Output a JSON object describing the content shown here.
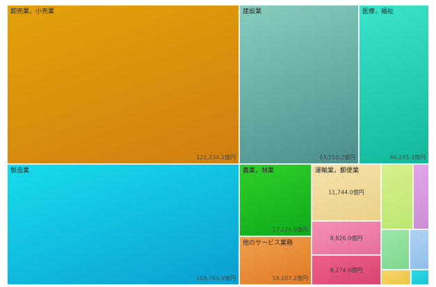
{
  "chart_data": {
    "type": "treemap",
    "unit": "億円",
    "items": [
      {
        "name": "卸売業，小売業",
        "value": "121,234.1億円",
        "colors": [
          "#e2a10a",
          "#cf7f10"
        ],
        "labelPos": "corner"
      },
      {
        "name": "建設業",
        "value": "63,510.2億円",
        "colors": [
          "#86cdbf",
          "#4c8e8a"
        ],
        "labelPos": "corner"
      },
      {
        "name": "医療，福祉",
        "value": "46,245.3億円",
        "colors": [
          "#3be3c9",
          "#13b79a"
        ],
        "labelPos": "corner"
      },
      {
        "name": "製造業",
        "value": "109,760.9億円",
        "colors": [
          "#16dcec",
          "#0b9fd0"
        ],
        "labelPos": "corner"
      },
      {
        "name": "農業，林業",
        "value": "17,224.6億円",
        "colors": [
          "#2fcf28",
          "#0faa1d"
        ],
        "labelPos": "corner"
      },
      {
        "name": "他のサービス業務",
        "value": "14,207.2億円",
        "colors": [
          "#f0a04b",
          "#e07925"
        ],
        "labelPos": "corner"
      },
      {
        "name": "運輸業，郵便業",
        "value": "11,744.0億円",
        "colors": [
          "#f5e2ab",
          "#ecd089"
        ],
        "labelPos": "mid"
      },
      {
        "name": "",
        "value": "8,826.0億円",
        "colors": [
          "#f58fb6",
          "#e66e9a"
        ],
        "labelPos": "mid"
      },
      {
        "name": "",
        "value": "8,274.6億円",
        "colors": [
          "#ee5f88",
          "#d94570"
        ],
        "labelPos": "mid"
      },
      {
        "name": "",
        "value": "",
        "colors": [
          "#d4f08b",
          "#bde672"
        ]
      },
      {
        "name": "",
        "value": "",
        "colors": [
          "#e3a5ea",
          "#c98fd4"
        ]
      },
      {
        "name": "",
        "value": "",
        "colors": [
          "#9ce6a7",
          "#7fd88f"
        ]
      },
      {
        "name": "",
        "value": "",
        "colors": [
          "#aed2f2",
          "#8fbfe9"
        ]
      },
      {
        "name": "",
        "value": "",
        "colors": [
          "#f6d66a",
          "#edc547"
        ]
      },
      {
        "name": "",
        "value": "",
        "colors": [
          "#2cd9e6",
          "#19c5d7"
        ]
      }
    ]
  }
}
